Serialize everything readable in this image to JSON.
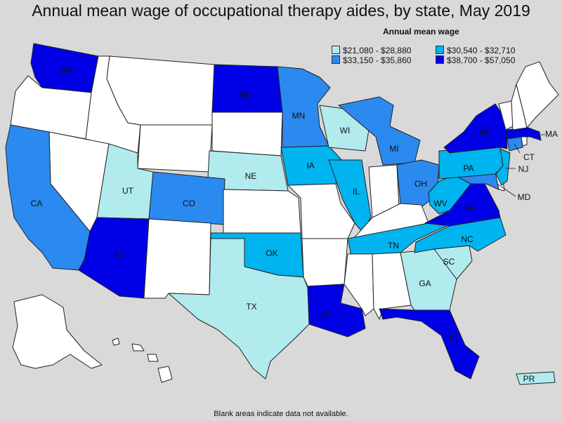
{
  "title": "Annual mean wage of occupational therapy aides, by state, May 2019",
  "legend": {
    "title": "Annual mean wage",
    "items": [
      {
        "range": "$21,080 - $28,880",
        "color": "#b2ebee"
      },
      {
        "range": "$30,540 - $32,710",
        "color": "#00b4f0"
      },
      {
        "range": "$33,150 - $35,860",
        "color": "#2b8af0"
      },
      {
        "range": "$38,700 - $57,050",
        "color": "#0000e6"
      }
    ]
  },
  "footnote": "Blank areas indicate data not available.",
  "colors": {
    "nodata": "#ffffff",
    "background": "#d9d9d9",
    "border": "#222222"
  },
  "states": {
    "WA": {
      "label": "WA",
      "tier": 4
    },
    "ND": {
      "label": "ND",
      "tier": 4
    },
    "MN": {
      "label": "MN",
      "tier": 3
    },
    "WI": {
      "label": "WI",
      "tier": 1
    },
    "MI": {
      "label": "MI",
      "tier": 3
    },
    "NY": {
      "label": "NY",
      "tier": 4
    },
    "MA": {
      "label": "MA",
      "tier": 4
    },
    "CT": {
      "label": "CT",
      "tier": 3
    },
    "NJ": {
      "label": "NJ",
      "tier": 2
    },
    "PA": {
      "label": "PA",
      "tier": 2
    },
    "IA": {
      "label": "IA",
      "tier": 2
    },
    "NE": {
      "label": "NE",
      "tier": 1
    },
    "UT": {
      "label": "UT",
      "tier": 1
    },
    "CO": {
      "label": "CO",
      "tier": 3
    },
    "CA": {
      "label": "CA",
      "tier": 3
    },
    "IL": {
      "label": "IL",
      "tier": 2
    },
    "OH": {
      "label": "OH",
      "tier": 3
    },
    "WV": {
      "label": "WV",
      "tier": 2
    },
    "VA": {
      "label": "VA",
      "tier": 4
    },
    "MD": {
      "label": "MD",
      "tier": 3
    },
    "NC": {
      "label": "NC",
      "tier": 2
    },
    "TN": {
      "label": "TN",
      "tier": 2
    },
    "OK": {
      "label": "OK",
      "tier": 2
    },
    "AZ": {
      "label": "AZ",
      "tier": 4
    },
    "TX": {
      "label": "TX",
      "tier": 1
    },
    "SC": {
      "label": "SC",
      "tier": 1
    },
    "GA": {
      "label": "GA",
      "tier": 1
    },
    "LA": {
      "label": "LA",
      "tier": 4
    },
    "FL": {
      "label": "FL",
      "tier": 4
    },
    "PR": {
      "label": "PR",
      "tier": 1
    },
    "OR": {
      "label": "",
      "tier": 0
    },
    "ID": {
      "label": "",
      "tier": 0
    },
    "MT": {
      "label": "",
      "tier": 0
    },
    "WY": {
      "label": "",
      "tier": 0
    },
    "SD": {
      "label": "",
      "tier": 0
    },
    "NV": {
      "label": "",
      "tier": 0
    },
    "NM": {
      "label": "",
      "tier": 0
    },
    "KS": {
      "label": "",
      "tier": 0
    },
    "MO": {
      "label": "",
      "tier": 0
    },
    "AR": {
      "label": "",
      "tier": 0
    },
    "MS": {
      "label": "",
      "tier": 0
    },
    "AL": {
      "label": "",
      "tier": 0
    },
    "IN": {
      "label": "",
      "tier": 0
    },
    "KY": {
      "label": "",
      "tier": 0
    },
    "ME": {
      "label": "",
      "tier": 0
    },
    "NH": {
      "label": "",
      "tier": 0
    },
    "VT": {
      "label": "",
      "tier": 0
    },
    "RI": {
      "label": "",
      "tier": 0
    },
    "DE": {
      "label": "",
      "tier": 0
    },
    "AK": {
      "label": "",
      "tier": 0
    },
    "HI": {
      "label": "",
      "tier": 0
    }
  }
}
